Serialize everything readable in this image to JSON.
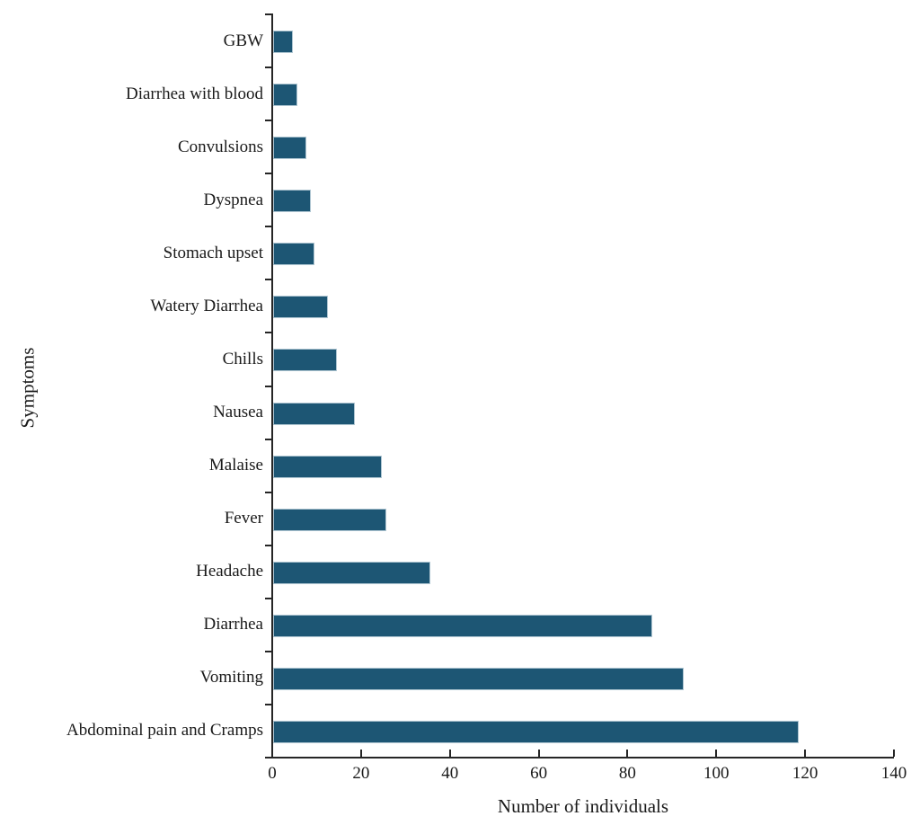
{
  "chart_data": {
    "type": "bar",
    "orientation": "horizontal",
    "title": "",
    "xlabel": "Number of individuals",
    "ylabel": "Symptoms",
    "categories": [
      "GBW",
      "Diarrhea with blood",
      "Convulsions",
      "Dyspnea",
      "Stomach upset",
      "Watery Diarrhea",
      "Chills",
      "Nausea",
      "Malaise",
      "Fever",
      "Headache",
      "Diarrhea",
      "Vomiting",
      "Abdominal pain and Cramps"
    ],
    "values": [
      4,
      5,
      7,
      8,
      9,
      12,
      14,
      18,
      24,
      25,
      35,
      85,
      92,
      118
    ],
    "xlim": [
      0,
      140
    ],
    "xticks": [
      0,
      20,
      40,
      60,
      80,
      100,
      120,
      140
    ],
    "grid": false,
    "legend": "none",
    "bar_color": "#1d5674",
    "bar_border_color": "#aec5d1",
    "axis_color": "#262626",
    "text_color": "#1a1a1a",
    "background_color": "#ffffff"
  }
}
